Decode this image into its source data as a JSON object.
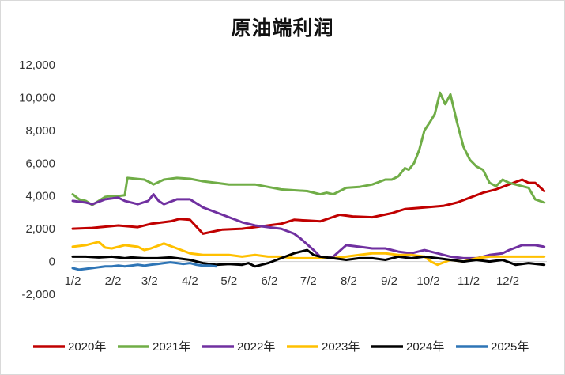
{
  "chart_data": {
    "type": "line",
    "title": "原油端利润",
    "xlabel": "",
    "ylabel": "",
    "ylim": [
      -2000,
      12000
    ],
    "yticks": [
      12000,
      10000,
      8000,
      6000,
      4000,
      2000,
      0,
      -2000
    ],
    "ytick_labels": [
      "12,000",
      "10,000",
      "8,000",
      "6,000",
      "4,000",
      "2,000",
      "0",
      "-2,000"
    ],
    "x_range": [
      0,
      364
    ],
    "x_tick_positions": [
      0,
      31,
      59,
      90,
      120,
      151,
      181,
      212,
      243,
      273,
      304,
      334
    ],
    "x_tick_labels": [
      "1/2",
      "2/2",
      "3/2",
      "4/2",
      "5/2",
      "6/2",
      "7/2",
      "8/2",
      "9/2",
      "10/2",
      "11/2",
      "12/2"
    ],
    "grid": false,
    "legend": "bottom",
    "series": [
      {
        "name": "2020年",
        "color": "#c00000",
        "x": [
          0,
          15,
          35,
          50,
          60,
          75,
          82,
          90,
          100,
          115,
          130,
          145,
          160,
          170,
          180,
          190,
          205,
          215,
          230,
          245,
          255,
          270,
          285,
          295,
          305,
          315,
          325,
          335,
          345,
          350,
          355,
          362
        ],
        "y": [
          2000,
          2050,
          2200,
          2100,
          2300,
          2450,
          2600,
          2550,
          1700,
          1950,
          2000,
          2150,
          2300,
          2550,
          2500,
          2450,
          2850,
          2750,
          2700,
          2950,
          3200,
          3300,
          3400,
          3600,
          3900,
          4200,
          4400,
          4700,
          5000,
          4800,
          4800,
          4300
        ]
      },
      {
        "name": "2021年",
        "color": "#70ad47",
        "x": [
          0,
          5,
          10,
          15,
          20,
          25,
          30,
          35,
          40,
          42,
          55,
          60,
          62,
          70,
          80,
          90,
          100,
          110,
          120,
          130,
          140,
          150,
          160,
          170,
          180,
          190,
          195,
          200,
          210,
          220,
          230,
          240,
          245,
          250,
          255,
          258,
          262,
          266,
          270,
          275,
          278,
          282,
          286,
          290,
          295,
          300,
          305,
          310,
          315,
          320,
          325,
          330,
          335,
          340,
          345,
          350,
          355,
          362
        ],
        "y": [
          4100,
          3800,
          3700,
          3450,
          3700,
          3950,
          4000,
          4000,
          4050,
          5100,
          5000,
          4800,
          4700,
          5000,
          5100,
          5050,
          4900,
          4800,
          4700,
          4700,
          4700,
          4550,
          4400,
          4350,
          4300,
          4100,
          4200,
          4100,
          4500,
          4550,
          4700,
          5000,
          5000,
          5200,
          5700,
          5600,
          6000,
          6800,
          8000,
          8600,
          9000,
          10300,
          9600,
          10200,
          8500,
          7000,
          6200,
          5800,
          5600,
          4800,
          4600,
          5000,
          4800,
          4700,
          4600,
          4500,
          3800,
          3600
        ]
      },
      {
        "name": "2022年",
        "color": "#7030a0",
        "x": [
          0,
          10,
          15,
          25,
          35,
          40,
          50,
          58,
          62,
          66,
          70,
          80,
          90,
          100,
          110,
          120,
          130,
          140,
          150,
          160,
          170,
          175,
          185,
          190,
          195,
          200,
          210,
          220,
          230,
          240,
          250,
          260,
          270,
          280,
          290,
          300,
          310,
          320,
          330,
          335,
          345,
          355,
          362
        ],
        "y": [
          3700,
          3600,
          3500,
          3800,
          3900,
          3700,
          3500,
          3700,
          4100,
          3700,
          3500,
          3800,
          3800,
          3300,
          3000,
          2700,
          2400,
          2200,
          2100,
          2000,
          1700,
          1400,
          700,
          300,
          200,
          300,
          1000,
          900,
          800,
          800,
          600,
          500,
          700,
          500,
          300,
          200,
          200,
          400,
          500,
          700,
          1000,
          1000,
          900
        ]
      },
      {
        "name": "2023年",
        "color": "#ffc000",
        "x": [
          0,
          10,
          20,
          25,
          30,
          40,
          50,
          55,
          60,
          70,
          80,
          90,
          100,
          110,
          120,
          130,
          140,
          150,
          160,
          170,
          180,
          190,
          200,
          210,
          220,
          230,
          240,
          250,
          260,
          270,
          275,
          280,
          290,
          300,
          310,
          320,
          330,
          340,
          350,
          362
        ],
        "y": [
          900,
          1000,
          1200,
          850,
          800,
          1000,
          900,
          700,
          800,
          1100,
          800,
          500,
          400,
          400,
          400,
          300,
          400,
          300,
          300,
          200,
          200,
          200,
          200,
          300,
          400,
          500,
          500,
          400,
          400,
          300,
          0,
          -200,
          100,
          0,
          200,
          300,
          300,
          300,
          300,
          300
        ]
      },
      {
        "name": "2024年",
        "color": "#000000",
        "x": [
          0,
          10,
          20,
          30,
          40,
          45,
          55,
          65,
          75,
          80,
          90,
          100,
          110,
          120,
          130,
          135,
          140,
          150,
          160,
          170,
          175,
          180,
          185,
          190,
          200,
          210,
          220,
          230,
          240,
          250,
          260,
          270,
          280,
          290,
          300,
          310,
          320,
          330,
          340,
          350,
          362
        ],
        "y": [
          300,
          300,
          250,
          300,
          200,
          250,
          200,
          200,
          250,
          200,
          100,
          -100,
          -200,
          -150,
          -200,
          -100,
          -300,
          -100,
          200,
          500,
          600,
          700,
          400,
          300,
          200,
          100,
          200,
          200,
          100,
          300,
          200,
          300,
          200,
          100,
          0,
          100,
          0,
          100,
          -200,
          -100,
          -200
        ]
      },
      {
        "name": "2025年",
        "color": "#2e75b6",
        "x": [
          0,
          5,
          10,
          15,
          20,
          25,
          30,
          35,
          40,
          45,
          50,
          55,
          60,
          65,
          70,
          75,
          80,
          85,
          90,
          95,
          100,
          105,
          110
        ],
        "y": [
          -400,
          -500,
          -450,
          -400,
          -350,
          -300,
          -300,
          -250,
          -300,
          -250,
          -200,
          -250,
          -200,
          -150,
          -100,
          -50,
          -100,
          -150,
          -100,
          -200,
          -250,
          -250,
          -300
        ]
      }
    ]
  }
}
